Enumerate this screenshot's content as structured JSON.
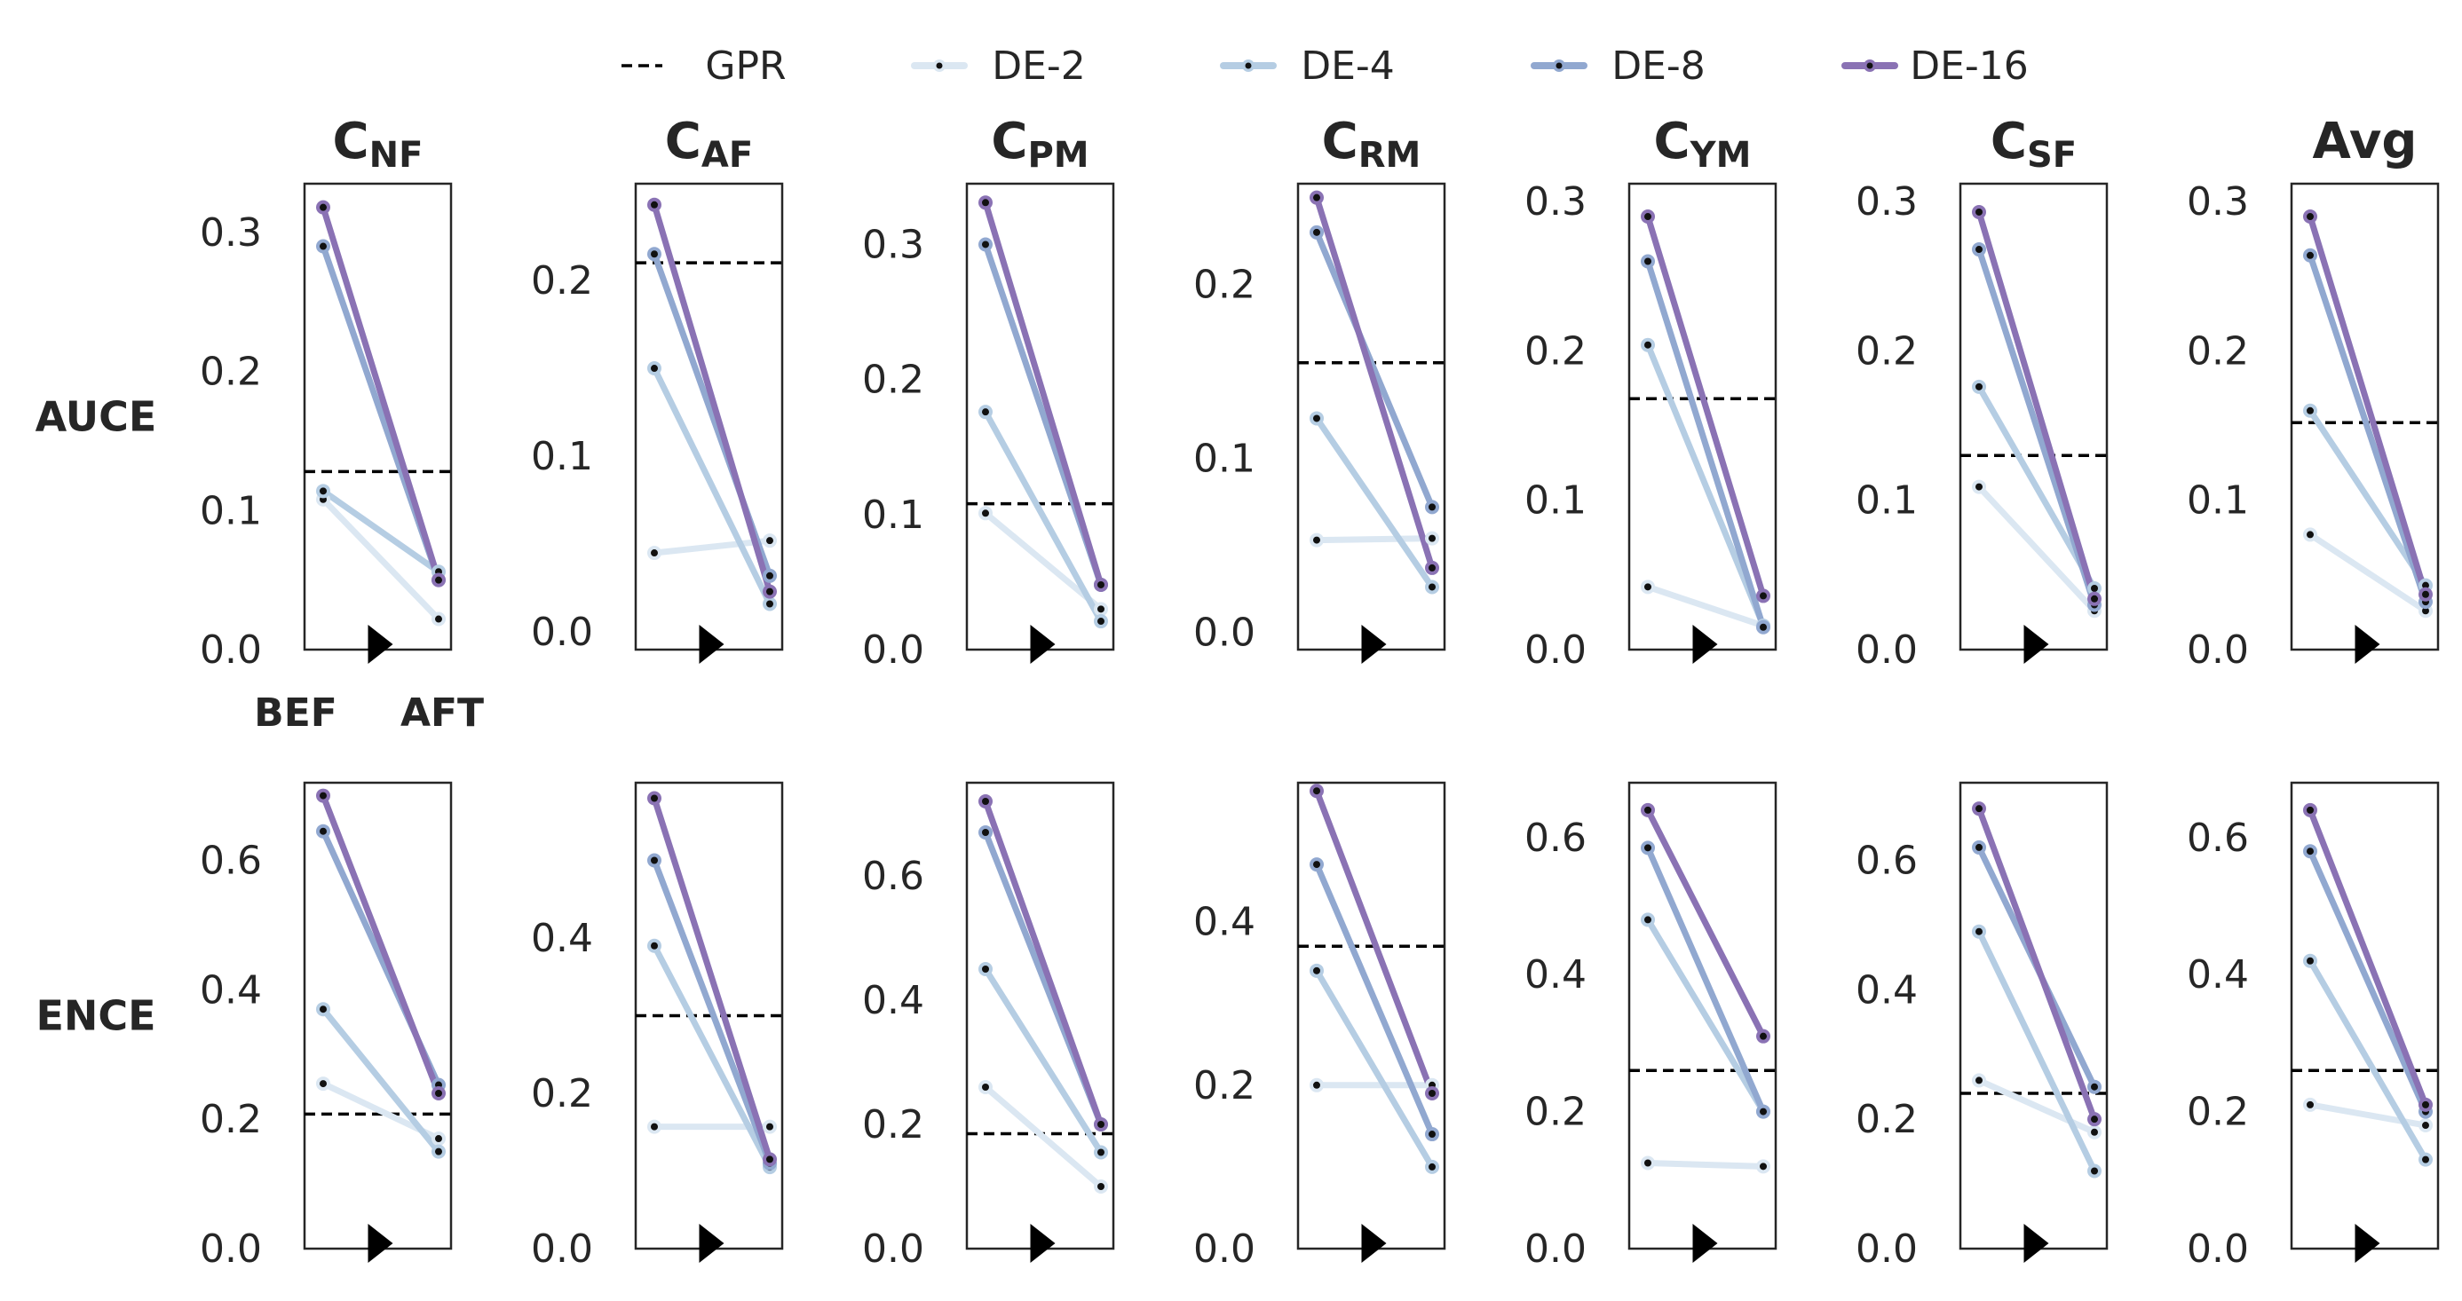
{
  "chart_data": {
    "type": "line",
    "title": "",
    "x_labels": [
      "BEF",
      "AFT"
    ],
    "legend": [
      "GPR",
      "DE-2",
      "DE-4",
      "DE-8",
      "DE-16"
    ],
    "legend_position": "top-center",
    "colors": {
      "GPR": "#000000",
      "DE-2": "#dbe7f2",
      "DE-4": "#b5cde3",
      "DE-8": "#91a8d0",
      "DE-16": "#8a72b4",
      "marker": "#111111"
    },
    "columns": [
      {
        "main": "C",
        "sub": "NF"
      },
      {
        "main": "C",
        "sub": "AF"
      },
      {
        "main": "C",
        "sub": "PM"
      },
      {
        "main": "C",
        "sub": "RM"
      },
      {
        "main": "C",
        "sub": "YM"
      },
      {
        "main": "C",
        "sub": "SF"
      },
      {
        "main": "Avg",
        "sub": ""
      }
    ],
    "rows": [
      {
        "name": "AUCE",
        "panels": [
          {
            "ylim": [
              0,
              0.335
            ],
            "ticks": [
              "0.0",
              "0.1",
              "0.2",
              "0.3"
            ],
            "tick_values": [
              0,
              0.1,
              0.2,
              0.3
            ],
            "gpr": 0.128,
            "series": [
              {
                "name": "DE-2",
                "values": [
                  0.108,
                  0.022
                ]
              },
              {
                "name": "DE-4",
                "values": [
                  0.114,
                  0.056
                ]
              },
              {
                "name": "DE-8",
                "values": [
                  0.29,
                  0.05
                ]
              },
              {
                "name": "DE-16",
                "values": [
                  0.318,
                  0.05
                ]
              }
            ]
          },
          {
            "ylim": [
              -0.01,
              0.255
            ],
            "ticks": [
              "0.0",
              "0.1",
              "0.2"
            ],
            "tick_values": [
              0,
              0.1,
              0.2
            ],
            "gpr": 0.21,
            "series": [
              {
                "name": "DE-2",
                "values": [
                  0.045,
                  0.052
                ]
              },
              {
                "name": "DE-4",
                "values": [
                  0.15,
                  0.016
                ]
              },
              {
                "name": "DE-8",
                "values": [
                  0.215,
                  0.032
                ]
              },
              {
                "name": "DE-16",
                "values": [
                  0.243,
                  0.023
                ]
              }
            ]
          },
          {
            "ylim": [
              0,
              0.345
            ],
            "ticks": [
              "0.0",
              "0.1",
              "0.2",
              "0.3"
            ],
            "tick_values": [
              0,
              0.1,
              0.2,
              0.3
            ],
            "gpr": 0.108,
            "series": [
              {
                "name": "DE-2",
                "values": [
                  0.101,
                  0.03
                ]
              },
              {
                "name": "DE-4",
                "values": [
                  0.176,
                  0.021
                ]
              },
              {
                "name": "DE-8",
                "values": [
                  0.3,
                  0.048
                ]
              },
              {
                "name": "DE-16",
                "values": [
                  0.331,
                  0.048
                ]
              }
            ]
          },
          {
            "ylim": [
              -0.01,
              0.258
            ],
            "ticks": [
              "0.0",
              "0.1",
              "0.2"
            ],
            "tick_values": [
              0,
              0.1,
              0.2
            ],
            "gpr": 0.155,
            "series": [
              {
                "name": "DE-2",
                "values": [
                  0.053,
                  0.054
                ]
              },
              {
                "name": "DE-4",
                "values": [
                  0.123,
                  0.026
                ]
              },
              {
                "name": "DE-8",
                "values": [
                  0.23,
                  0.072
                ]
              },
              {
                "name": "DE-16",
                "values": [
                  0.25,
                  0.037
                ]
              }
            ]
          },
          {
            "ylim": [
              0,
              0.312
            ],
            "ticks": [
              "0.0",
              "0.1",
              "0.2",
              "0.3"
            ],
            "tick_values": [
              0,
              0.1,
              0.2,
              0.3
            ],
            "gpr": 0.168,
            "series": [
              {
                "name": "DE-2",
                "values": [
                  0.042,
                  0.016
                ]
              },
              {
                "name": "DE-4",
                "values": [
                  0.204,
                  0.016
                ]
              },
              {
                "name": "DE-8",
                "values": [
                  0.26,
                  0.015
                ]
              },
              {
                "name": "DE-16",
                "values": [
                  0.29,
                  0.036
                ]
              }
            ]
          },
          {
            "ylim": [
              0,
              0.312
            ],
            "ticks": [
              "0.0",
              "0.1",
              "0.2",
              "0.3"
            ],
            "tick_values": [
              0,
              0.1,
              0.2,
              0.3
            ],
            "gpr": 0.13,
            "series": [
              {
                "name": "DE-2",
                "values": [
                  0.109,
                  0.026
                ]
              },
              {
                "name": "DE-4",
                "values": [
                  0.176,
                  0.041
                ]
              },
              {
                "name": "DE-8",
                "values": [
                  0.268,
                  0.03
                ]
              },
              {
                "name": "DE-16",
                "values": [
                  0.293,
                  0.034
                ]
              }
            ]
          },
          {
            "ylim": [
              0,
              0.312
            ],
            "ticks": [
              "0.0",
              "0.1",
              "0.2",
              "0.3"
            ],
            "tick_values": [
              0,
              0.1,
              0.2,
              0.3
            ],
            "gpr": 0.152,
            "series": [
              {
                "name": "DE-2",
                "values": [
                  0.077,
                  0.026
                ]
              },
              {
                "name": "DE-4",
                "values": [
                  0.16,
                  0.043
                ]
              },
              {
                "name": "DE-8",
                "values": [
                  0.264,
                  0.032
                ]
              },
              {
                "name": "DE-16",
                "values": [
                  0.29,
                  0.037
                ]
              }
            ]
          }
        ]
      },
      {
        "name": "ENCE",
        "panels": [
          {
            "ylim": [
              0,
              0.72
            ],
            "ticks": [
              "0.0",
              "0.2",
              "0.4",
              "0.6"
            ],
            "tick_values": [
              0,
              0.2,
              0.4,
              0.6
            ],
            "gpr": 0.208,
            "series": [
              {
                "name": "DE-2",
                "values": [
                  0.255,
                  0.17
                ]
              },
              {
                "name": "DE-4",
                "values": [
                  0.37,
                  0.15
                ]
              },
              {
                "name": "DE-8",
                "values": [
                  0.645,
                  0.253
                ]
              },
              {
                "name": "DE-16",
                "values": [
                  0.7,
                  0.24
                ]
              }
            ]
          },
          {
            "ylim": [
              0,
              0.6
            ],
            "ticks": [
              "0.0",
              "0.2",
              "0.4"
            ],
            "tick_values": [
              0,
              0.2,
              0.4
            ],
            "gpr": 0.3,
            "series": [
              {
                "name": "DE-2",
                "values": [
                  0.157,
                  0.157
                ]
              },
              {
                "name": "DE-4",
                "values": [
                  0.39,
                  0.105
                ]
              },
              {
                "name": "DE-8",
                "values": [
                  0.5,
                  0.11
                ]
              },
              {
                "name": "DE-16",
                "values": [
                  0.58,
                  0.115
                ]
              }
            ]
          },
          {
            "ylim": [
              0,
              0.75
            ],
            "ticks": [
              "0.0",
              "0.2",
              "0.4",
              "0.6"
            ],
            "tick_values": [
              0,
              0.2,
              0.4,
              0.6
            ],
            "gpr": 0.185,
            "series": [
              {
                "name": "DE-2",
                "values": [
                  0.26,
                  0.1
                ]
              },
              {
                "name": "DE-4",
                "values": [
                  0.45,
                  0.155
                ]
              },
              {
                "name": "DE-8",
                "values": [
                  0.67,
                  0.2
                ]
              },
              {
                "name": "DE-16",
                "values": [
                  0.72,
                  0.2
                ]
              }
            ]
          },
          {
            "ylim": [
              0,
              0.57
            ],
            "ticks": [
              "0.0",
              "0.2",
              "0.4"
            ],
            "tick_values": [
              0,
              0.2,
              0.4
            ],
            "gpr": 0.37,
            "series": [
              {
                "name": "DE-2",
                "values": [
                  0.2,
                  0.2
                ]
              },
              {
                "name": "DE-4",
                "values": [
                  0.34,
                  0.1
                ]
              },
              {
                "name": "DE-8",
                "values": [
                  0.47,
                  0.14
                ]
              },
              {
                "name": "DE-16",
                "values": [
                  0.56,
                  0.19
                ]
              }
            ]
          },
          {
            "ylim": [
              0,
              0.68
            ],
            "ticks": [
              "0.0",
              "0.2",
              "0.4",
              "0.6"
            ],
            "tick_values": [
              0,
              0.2,
              0.4,
              0.6
            ],
            "gpr": 0.26,
            "series": [
              {
                "name": "DE-2",
                "values": [
                  0.125,
                  0.12
                ]
              },
              {
                "name": "DE-4",
                "values": [
                  0.48,
                  0.2
                ]
              },
              {
                "name": "DE-8",
                "values": [
                  0.585,
                  0.2
                ]
              },
              {
                "name": "DE-16",
                "values": [
                  0.64,
                  0.31
                ]
              }
            ]
          },
          {
            "ylim": [
              0,
              0.72
            ],
            "ticks": [
              "0.0",
              "0.2",
              "0.4",
              "0.6"
            ],
            "tick_values": [
              0,
              0.2,
              0.4,
              0.6
            ],
            "gpr": 0.24,
            "series": [
              {
                "name": "DE-2",
                "values": [
                  0.26,
                  0.18
                ]
              },
              {
                "name": "DE-4",
                "values": [
                  0.49,
                  0.12
                ]
              },
              {
                "name": "DE-8",
                "values": [
                  0.62,
                  0.25
                ]
              },
              {
                "name": "DE-16",
                "values": [
                  0.68,
                  0.2
                ]
              }
            ]
          },
          {
            "ylim": [
              0,
              0.68
            ],
            "ticks": [
              "0.0",
              "0.2",
              "0.4",
              "0.6"
            ],
            "tick_values": [
              0,
              0.2,
              0.4,
              0.6
            ],
            "gpr": 0.26,
            "series": [
              {
                "name": "DE-2",
                "values": [
                  0.21,
                  0.18
                ]
              },
              {
                "name": "DE-4",
                "values": [
                  0.42,
                  0.13
                ]
              },
              {
                "name": "DE-8",
                "values": [
                  0.58,
                  0.2
                ]
              },
              {
                "name": "DE-16",
                "values": [
                  0.64,
                  0.21
                ]
              }
            ]
          }
        ]
      }
    ]
  }
}
